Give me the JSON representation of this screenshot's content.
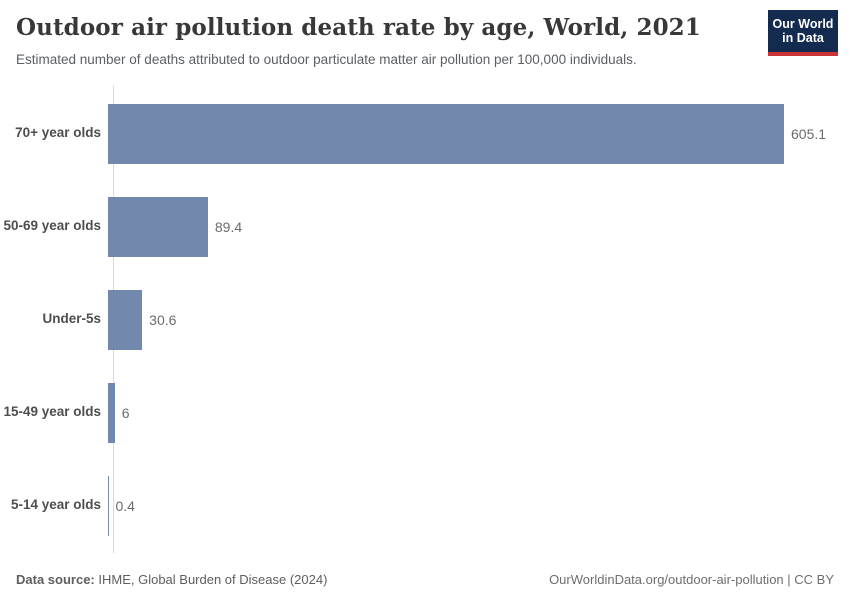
{
  "header": {
    "title": "Outdoor air pollution death rate by age, World, 2021",
    "subtitle": "Estimated number of deaths attributed to outdoor particulate matter air pollution per 100,000 individuals.",
    "logo": {
      "line1": "Our World",
      "line2": "in Data"
    }
  },
  "chart_data": {
    "type": "bar",
    "orientation": "horizontal",
    "title": "Outdoor air pollution death rate by age, World, 2021",
    "categories": [
      "70+ year olds",
      "50-69 year olds",
      "Under-5s",
      "15-49 year olds",
      "5-14 year olds"
    ],
    "values": [
      605.1,
      89.4,
      30.6,
      6,
      0.4
    ],
    "value_labels": [
      "605.1",
      "89.4",
      "30.6",
      "6",
      "0.4"
    ],
    "xlabel": "",
    "ylabel": "",
    "xlim": [
      0,
      650
    ],
    "grid": false,
    "legend": "none",
    "bar_color": "#7288ac",
    "axis_line_color": "#d9d9d9"
  },
  "footer": {
    "source_label": "Data source:",
    "source_text": " IHME, Global Burden of Disease (2024)",
    "credit": "OurWorldinData.org/outdoor-air-pollution | CC BY"
  },
  "colors": {
    "title": "#383838",
    "subtitle": "#5b5f63",
    "logo_bg": "#122b4e",
    "logo_accent": "#cb3335",
    "category_label": "#4e4e4e",
    "value_label": "#6b6b6b"
  }
}
